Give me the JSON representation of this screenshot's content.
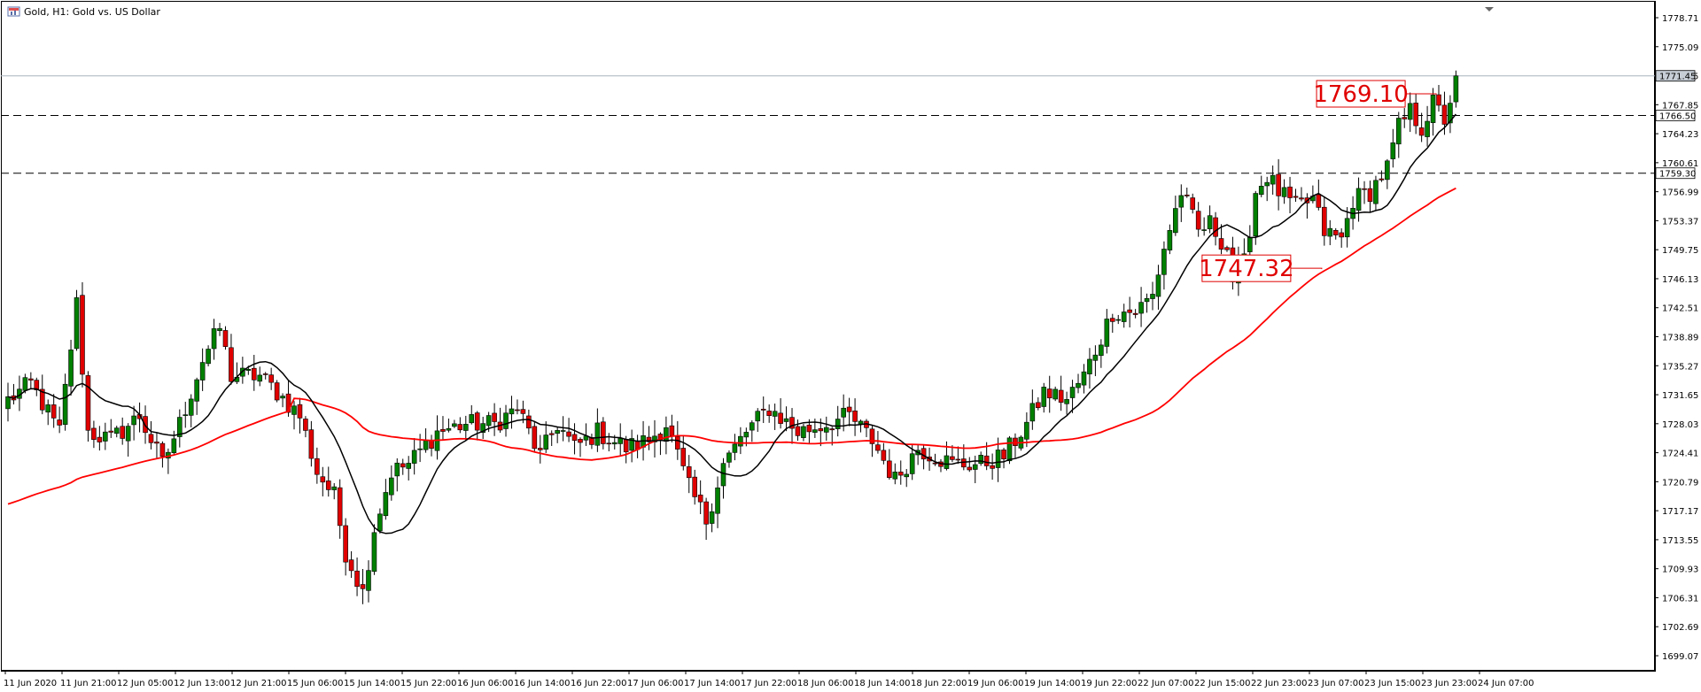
{
  "window": {
    "title": "Gold, H1:  Gold vs. US Dollar",
    "icon": "chart-window-icon"
  },
  "chart_data": {
    "type": "candlestick",
    "symbol": "Gold",
    "timeframe": "H1",
    "ylim": [
      1697.0,
      1781.0
    ],
    "y_ticks": [
      "1778.71",
      "1775.09",
      "1771.45",
      "1767.85",
      "1764.23",
      "1760.61",
      "1756.99",
      "1753.37",
      "1749.75",
      "1746.13",
      "1742.51",
      "1738.89",
      "1735.27",
      "1731.65",
      "1728.03",
      "1724.41",
      "1720.79",
      "1717.17",
      "1713.55",
      "1709.93",
      "1706.31",
      "1702.69",
      "1699.07"
    ],
    "x_labels": [
      "11 Jun 2020",
      "11 Jun 21:00",
      "12 Jun 05:00",
      "12 Jun 13:00",
      "12 Jun 21:00",
      "15 Jun 06:00",
      "15 Jun 14:00",
      "15 Jun 22:00",
      "16 Jun 06:00",
      "16 Jun 14:00",
      "16 Jun 22:00",
      "17 Jun 06:00",
      "17 Jun 14:00",
      "17 Jun 22:00",
      "18 Jun 06:00",
      "18 Jun 14:00",
      "18 Jun 22:00",
      "19 Jun 06:00",
      "19 Jun 14:00",
      "19 Jun 22:00",
      "22 Jun 07:00",
      "22 Jun 15:00",
      "22 Jun 23:00",
      "23 Jun 07:00",
      "23 Jun 15:00",
      "23 Jun 23:00",
      "24 Jun 07:00"
    ],
    "current_price": "1771.45",
    "levels": [
      {
        "value": 1766.5,
        "label": "1766.50",
        "style": "dashed"
      },
      {
        "value": 1759.3,
        "label": "1759.30",
        "style": "dashed"
      }
    ],
    "annotations": [
      {
        "text": "1769.10",
        "value": 1769.1,
        "bar": 248
      },
      {
        "text": "1747.32",
        "value": 1747.32,
        "bar": 228
      }
    ],
    "colors": {
      "bull": "#008000",
      "bear": "#e00000",
      "ma_fast": "#000000",
      "ma_slow": "#ff0000",
      "levels": "#000000",
      "current": "#a9b3bd"
    },
    "anchors": [
      [
        0,
        1731
      ],
      [
        4,
        1733
      ],
      [
        9,
        1727
      ],
      [
        12,
        1743
      ],
      [
        14,
        1727
      ],
      [
        18,
        1726
      ],
      [
        23,
        1729
      ],
      [
        27,
        1723
      ],
      [
        30,
        1728
      ],
      [
        34,
        1736
      ],
      [
        37,
        1740
      ],
      [
        39,
        1734
      ],
      [
        44,
        1734
      ],
      [
        47,
        1732
      ],
      [
        51,
        1729
      ],
      [
        54,
        1722
      ],
      [
        57,
        1719
      ],
      [
        59,
        1712
      ],
      [
        62,
        1707
      ],
      [
        64,
        1715
      ],
      [
        67,
        1722
      ],
      [
        70,
        1723
      ],
      [
        75,
        1727
      ],
      [
        80,
        1728
      ],
      [
        85,
        1728
      ],
      [
        89,
        1730
      ],
      [
        93,
        1724
      ],
      [
        96,
        1728
      ],
      [
        99,
        1725
      ],
      [
        103,
        1727
      ],
      [
        108,
        1725
      ],
      [
        112,
        1726
      ],
      [
        115,
        1728
      ],
      [
        119,
        1720
      ],
      [
        122,
        1716
      ],
      [
        125,
        1723
      ],
      [
        129,
        1727
      ],
      [
        133,
        1730
      ],
      [
        138,
        1727
      ],
      [
        143,
        1728
      ],
      [
        147,
        1729
      ],
      [
        151,
        1726
      ],
      [
        155,
        1721
      ],
      [
        159,
        1725
      ],
      [
        165,
        1723
      ],
      [
        170,
        1723
      ],
      [
        174,
        1724
      ],
      [
        178,
        1728
      ],
      [
        181,
        1732
      ],
      [
        185,
        1731
      ],
      [
        188,
        1734
      ],
      [
        193,
        1742
      ],
      [
        197,
        1742
      ],
      [
        200,
        1744
      ],
      [
        202,
        1750
      ],
      [
        205,
        1757
      ],
      [
        208,
        1752
      ],
      [
        210,
        1753
      ],
      [
        213,
        1750
      ],
      [
        214,
        1746
      ],
      [
        216,
        1748
      ],
      [
        218,
        1757
      ],
      [
        220,
        1759
      ],
      [
        222,
        1757
      ],
      [
        225,
        1755
      ],
      [
        228,
        1756
      ],
      [
        230,
        1752
      ],
      [
        233,
        1751
      ],
      [
        235,
        1756
      ],
      [
        238,
        1757
      ],
      [
        241,
        1760
      ],
      [
        243,
        1765
      ],
      [
        245,
        1767
      ],
      [
        247,
        1765
      ],
      [
        249,
        1768
      ],
      [
        251,
        1766
      ],
      [
        253,
        1771
      ]
    ]
  }
}
